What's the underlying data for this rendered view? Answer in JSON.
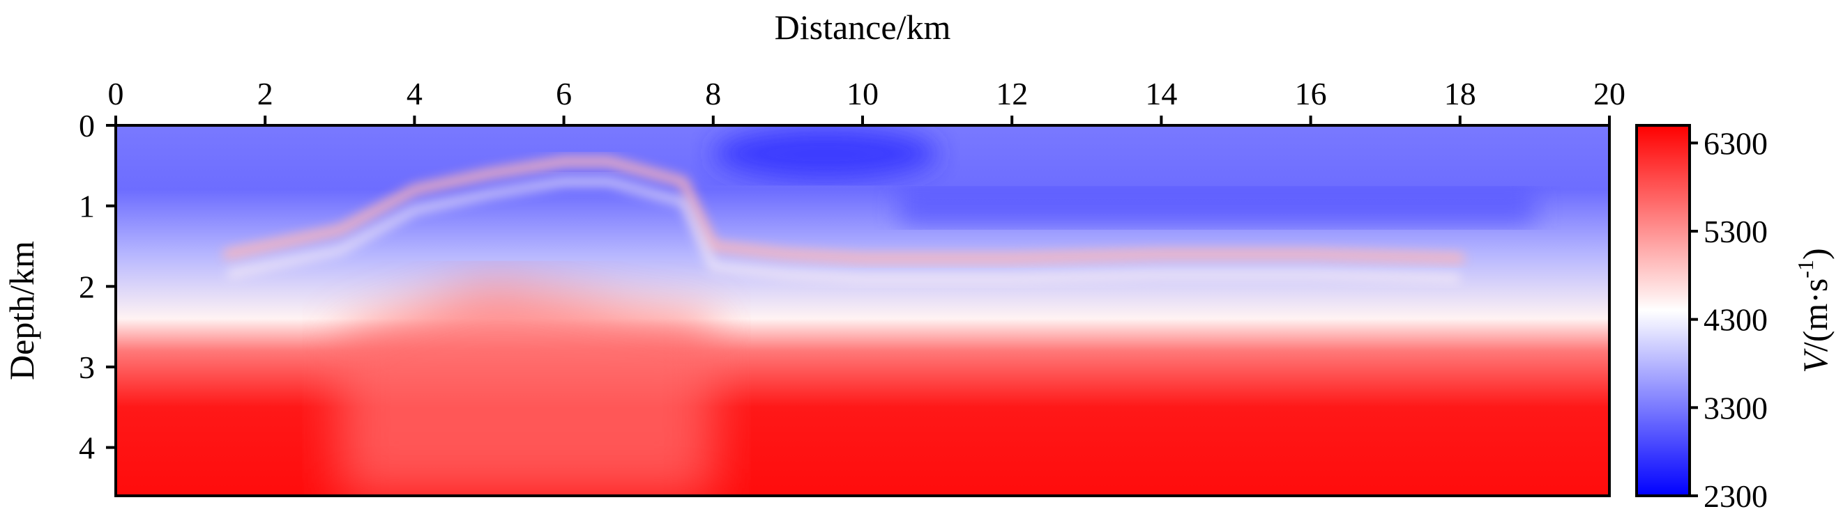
{
  "chart_data": {
    "type": "heatmap",
    "title": "",
    "xlabel": "Distance/km",
    "ylabel": "Depth/km",
    "xlim": [
      0,
      20
    ],
    "ylim": [
      0,
      4.6
    ],
    "x_ticks": [
      "0",
      "2",
      "4",
      "6",
      "8",
      "10",
      "12",
      "14",
      "16",
      "18",
      "20"
    ],
    "y_ticks": [
      "0",
      "1",
      "2",
      "3",
      "4"
    ],
    "x_axis_position": "top",
    "y_axis_inverted": true,
    "colorbar": {
      "label_italic": "V",
      "label_rest": "/(m·s",
      "label_sup": "-1",
      "label_close": ")",
      "range": [
        2300,
        6500
      ],
      "ticks": [
        "2300",
        "3300",
        "4300",
        "5300",
        "6300"
      ],
      "colormap": [
        "#0000ff",
        "#ffffff",
        "#ff0000"
      ]
    },
    "series": [
      {
        "structure": "velocity-model-background",
        "layers": [
          {
            "depth": 0.0,
            "value": 3300
          },
          {
            "depth": 0.8,
            "value": 3200
          },
          {
            "depth": 1.6,
            "value": 3800
          },
          {
            "depth": 2.4,
            "value": 4500
          },
          {
            "depth": 2.8,
            "value": 5500
          },
          {
            "depth": 3.5,
            "value": 6300
          },
          {
            "depth": 4.6,
            "value": 6400
          }
        ]
      },
      {
        "structure": "high-velocity-reflectors",
        "x": [
          1.5,
          3.0,
          4.0,
          5.0,
          6.0,
          6.6,
          7.2,
          7.6,
          8.0,
          9.0,
          10.0,
          12.0,
          14.0,
          16.0,
          18.0
        ],
        "y": [
          1.6,
          1.3,
          0.8,
          0.6,
          0.45,
          0.45,
          0.6,
          0.7,
          1.5,
          1.6,
          1.65,
          1.65,
          1.6,
          1.6,
          1.65
        ],
        "value": 5000
      },
      {
        "structure": "low-velocity-lens",
        "x": [
          8.0,
          9.0,
          10.0,
          11.0
        ],
        "y": [
          0.3,
          0.35,
          0.35,
          0.3
        ],
        "value": 2700
      },
      {
        "structure": "uplift-dome",
        "x": [
          3.0,
          4.5,
          5.0,
          6.0,
          7.0,
          8.0
        ],
        "y": [
          2.6,
          2.1,
          1.95,
          2.1,
          2.3,
          2.4
        ],
        "value": 5600
      }
    ]
  }
}
